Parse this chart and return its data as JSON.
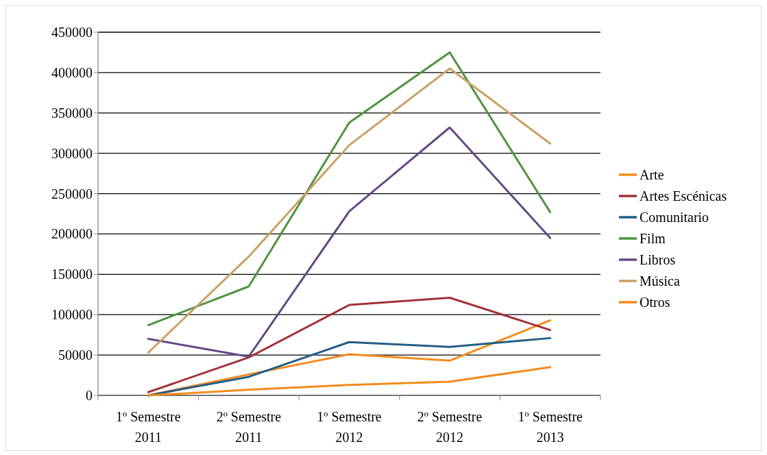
{
  "chart_data": {
    "type": "line",
    "categories": [
      "1º Semestre 2011",
      "2º Semestre 2011",
      "1º Semestre 2012",
      "2º Semestre 2012",
      "1º Semestre 2013"
    ],
    "series": [
      {
        "name": "Arte",
        "color": "#f38b1c",
        "values": [
          0,
          26000,
          51000,
          43000,
          93000
        ]
      },
      {
        "name": "Artes Escénicas",
        "color": "#a13239",
        "values": [
          4000,
          47000,
          112000,
          121000,
          81000
        ]
      },
      {
        "name": "Comunitario",
        "color": "#215e84",
        "values": [
          0,
          23000,
          66000,
          60000,
          71000
        ]
      },
      {
        "name": "Film",
        "color": "#4e9340",
        "values": [
          87000,
          135000,
          338000,
          425000,
          227000
        ]
      },
      {
        "name": "Libros",
        "color": "#644a85",
        "values": [
          70000,
          48000,
          228000,
          332000,
          195000
        ]
      },
      {
        "name": "Música",
        "color": "#c9a066",
        "values": [
          53000,
          172000,
          310000,
          405000,
          312000
        ]
      },
      {
        "name": "Otros",
        "color": "#f38b1c",
        "values": [
          0,
          7000,
          13000,
          17000,
          35000
        ]
      }
    ],
    "ylim": [
      0,
      450000
    ],
    "yticks": [
      0,
      50000,
      100000,
      150000,
      200000,
      250000,
      300000,
      350000,
      400000,
      450000
    ],
    "grid": "y",
    "legend": "right",
    "line_style": "solid"
  }
}
